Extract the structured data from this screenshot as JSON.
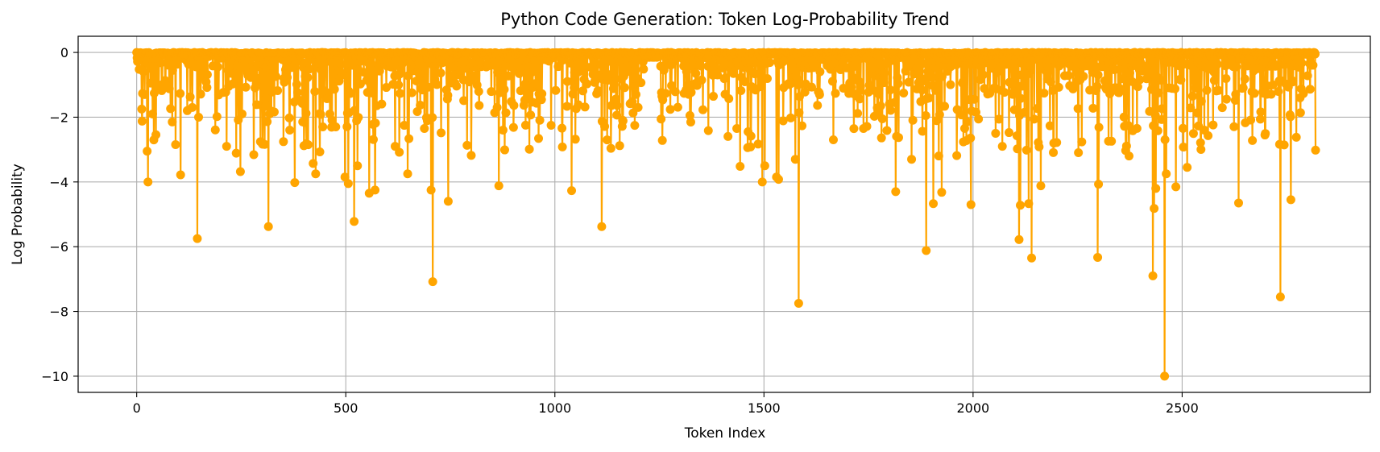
{
  "chart_data": {
    "type": "line",
    "title": "Python Code Generation: Token Log-Probability Trend",
    "xlabel": "Token Index",
    "ylabel": "Log Probability",
    "xlim": [
      -140,
      2950
    ],
    "ylim": [
      -10.5,
      0.5
    ],
    "x_ticks": [
      0,
      500,
      1000,
      1500,
      2000,
      2500
    ],
    "y_ticks": [
      0,
      -2,
      -4,
      -6,
      -8,
      -10
    ],
    "x_tick_labels": [
      "0",
      "500",
      "1000",
      "1500",
      "2000",
      "2500"
    ],
    "y_tick_labels": [
      "0",
      "−2",
      "−4",
      "−6",
      "−8",
      "−10"
    ],
    "grid": true,
    "markers": true,
    "color": "#ffa500",
    "token_count": 2820,
    "notable_dips": [
      {
        "x": 25,
        "y": -3.05
      },
      {
        "x": 27,
        "y": -4.0
      },
      {
        "x": 38,
        "y": -1.9
      },
      {
        "x": 105,
        "y": -3.78
      },
      {
        "x": 145,
        "y": -5.75
      },
      {
        "x": 148,
        "y": -2.0
      },
      {
        "x": 215,
        "y": -2.9
      },
      {
        "x": 248,
        "y": -3.68
      },
      {
        "x": 252,
        "y": -1.9
      },
      {
        "x": 315,
        "y": -5.38
      },
      {
        "x": 318,
        "y": -1.9
      },
      {
        "x": 378,
        "y": -4.02
      },
      {
        "x": 410,
        "y": -2.85
      },
      {
        "x": 422,
        "y": -3.43
      },
      {
        "x": 428,
        "y": -3.75
      },
      {
        "x": 462,
        "y": -1.9
      },
      {
        "x": 476,
        "y": -2.3
      },
      {
        "x": 498,
        "y": -3.85
      },
      {
        "x": 506,
        "y": -4.05
      },
      {
        "x": 520,
        "y": -5.22
      },
      {
        "x": 528,
        "y": -3.5
      },
      {
        "x": 556,
        "y": -4.35
      },
      {
        "x": 570,
        "y": -4.25
      },
      {
        "x": 618,
        "y": -2.9
      },
      {
        "x": 648,
        "y": -3.75
      },
      {
        "x": 688,
        "y": -2.35
      },
      {
        "x": 704,
        "y": -4.25
      },
      {
        "x": 708,
        "y": -7.08
      },
      {
        "x": 745,
        "y": -4.6
      },
      {
        "x": 800,
        "y": -3.18
      },
      {
        "x": 866,
        "y": -4.12
      },
      {
        "x": 876,
        "y": -2.4
      },
      {
        "x": 1040,
        "y": -4.27
      },
      {
        "x": 1112,
        "y": -5.38
      },
      {
        "x": 1125,
        "y": -2.7
      },
      {
        "x": 1155,
        "y": -2.88
      },
      {
        "x": 1325,
        "y": -2.15
      },
      {
        "x": 1435,
        "y": -2.35
      },
      {
        "x": 1443,
        "y": -3.52
      },
      {
        "x": 1462,
        "y": -2.45
      },
      {
        "x": 1496,
        "y": -4.0
      },
      {
        "x": 1502,
        "y": -3.5
      },
      {
        "x": 1530,
        "y": -3.85
      },
      {
        "x": 1535,
        "y": -3.92
      },
      {
        "x": 1575,
        "y": -3.3
      },
      {
        "x": 1583,
        "y": -7.75
      },
      {
        "x": 1738,
        "y": -2.35
      },
      {
        "x": 1815,
        "y": -4.3
      },
      {
        "x": 1853,
        "y": -3.3
      },
      {
        "x": 1888,
        "y": -6.12
      },
      {
        "x": 1905,
        "y": -4.67
      },
      {
        "x": 1918,
        "y": -3.2
      },
      {
        "x": 1925,
        "y": -4.32
      },
      {
        "x": 1995,
        "y": -4.7
      },
      {
        "x": 2070,
        "y": -2.9
      },
      {
        "x": 2110,
        "y": -5.78
      },
      {
        "x": 2113,
        "y": -4.72
      },
      {
        "x": 2133,
        "y": -4.67
      },
      {
        "x": 2140,
        "y": -6.35
      },
      {
        "x": 2162,
        "y": -4.12
      },
      {
        "x": 2298,
        "y": -6.33
      },
      {
        "x": 2300,
        "y": -4.07
      },
      {
        "x": 2365,
        "y": -3.03
      },
      {
        "x": 2430,
        "y": -6.9
      },
      {
        "x": 2433,
        "y": -4.82
      },
      {
        "x": 2437,
        "y": -4.2
      },
      {
        "x": 2458,
        "y": -10.0
      },
      {
        "x": 2462,
        "y": -3.75
      },
      {
        "x": 2485,
        "y": -4.15
      },
      {
        "x": 2512,
        "y": -3.55
      },
      {
        "x": 2562,
        "y": -2.57
      },
      {
        "x": 2635,
        "y": -4.65
      },
      {
        "x": 2668,
        "y": -2.72
      },
      {
        "x": 2698,
        "y": -2.55
      },
      {
        "x": 2735,
        "y": -7.55
      },
      {
        "x": 2760,
        "y": -4.55
      },
      {
        "x": 2773,
        "y": -2.62
      }
    ]
  }
}
